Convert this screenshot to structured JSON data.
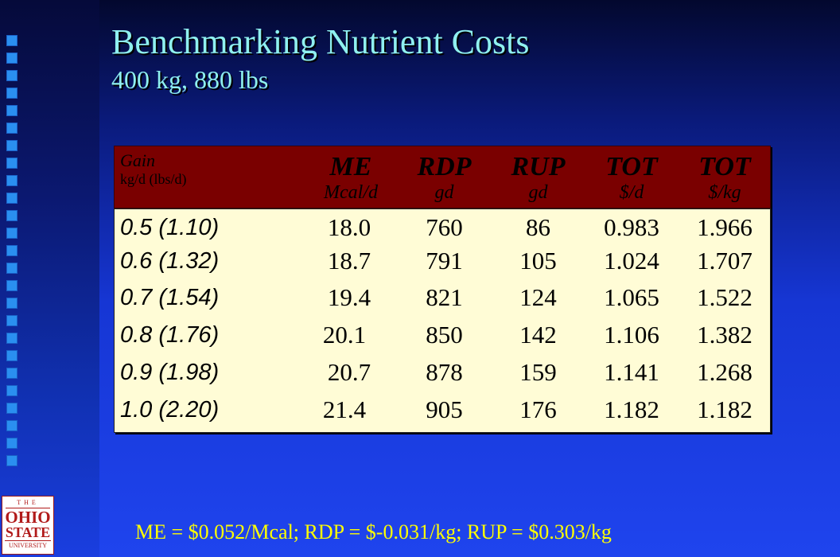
{
  "slide": {
    "title": "Benchmarking Nutrient Costs",
    "subtitle": "400 kg, 880 lbs",
    "footer": "ME = $0.052/Mcal; RDP = $-0.031/kg; RUP = $0.303/kg"
  },
  "table": {
    "gain_header": {
      "line1": "Gain",
      "line2": "kg/d (lbs/d)"
    },
    "columns": [
      {
        "line1": "ME",
        "line2": "Mcal/d"
      },
      {
        "line1": "RDP",
        "line2": "gd"
      },
      {
        "line1": "RUP",
        "line2": "gd"
      },
      {
        "line1": "TOT",
        "line2": "$/d"
      },
      {
        "line1": "TOT",
        "line2": "$/kg"
      }
    ],
    "rows": [
      {
        "gain": "0.5 (1.10)",
        "me": "18.0",
        "rdp": "760",
        "rup": "86",
        "tot_d": "0.983",
        "tot_kg": "1.966"
      },
      {
        "gain": "0.6 (1.32)",
        "me": "18.7",
        "rdp": "791",
        "rup": "105",
        "tot_d": "1.024",
        "tot_kg": "1.707"
      },
      {
        "gain": "0.7 (1.54)",
        "me": "19.4",
        "rdp": "821",
        "rup": "124",
        "tot_d": "1.065",
        "tot_kg": "1.522"
      },
      {
        "gain": "0.8 (1.76)",
        "me": "20.1",
        "rdp": "850",
        "rup": "142",
        "tot_d": "1.106",
        "tot_kg": "1.382"
      },
      {
        "gain": "0.9 (1.98)",
        "me": "20.7",
        "rdp": "878",
        "rup": "159",
        "tot_d": "1.141",
        "tot_kg": "1.268"
      },
      {
        "gain": "1.0 (2.20)",
        "me": "21.4",
        "rdp": "905",
        "rup": "176",
        "tot_d": "1.182",
        "tot_kg": "1.182"
      }
    ]
  },
  "logo": {
    "the": "THE",
    "line1": "OHIO",
    "line2": "STATE",
    "line3": "UNIVERSITY"
  }
}
